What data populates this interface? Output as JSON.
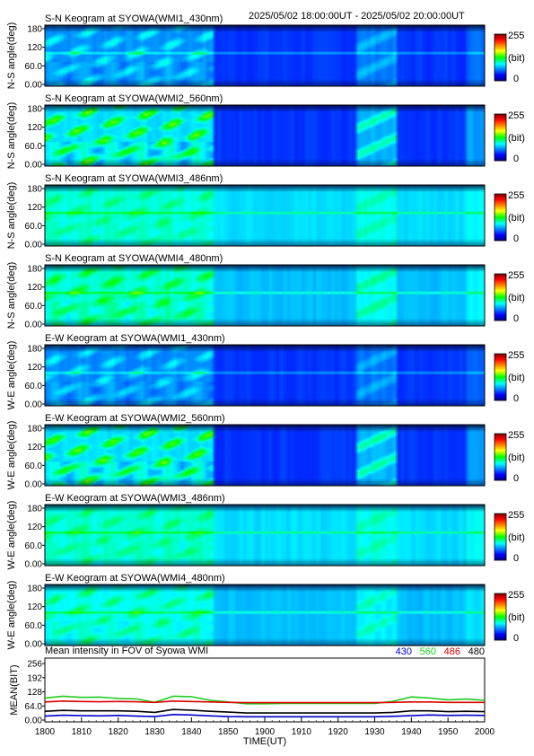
{
  "header": {
    "time_range": "2025/05/02 18:00:00UT - 2025/05/02 20:00:00UT"
  },
  "panels": [
    {
      "title": "S-N Keogram at SYOWA(WMI1_430nm)",
      "ylabel": "N-S angle(deg)",
      "channel": "430",
      "direction": "N-S",
      "activity": 0.55
    },
    {
      "title": "S-N Keogram at SYOWA(WMI2_560nm)",
      "ylabel": "N-S angle(deg)",
      "channel": "560",
      "direction": "N-S",
      "activity": 1.0
    },
    {
      "title": "S-N Keogram at SYOWA(WMI3_486nm)",
      "ylabel": "N-S angle(deg)",
      "channel": "486",
      "direction": "N-S",
      "activity": 0.3
    },
    {
      "title": "S-N Keogram at SYOWA(WMI4_480nm)",
      "ylabel": "N-S angle(deg)",
      "channel": "480",
      "direction": "N-S",
      "activity": 0.5
    },
    {
      "title": "E-W Keogram at SYOWA(WMI1_430nm)",
      "ylabel": "W-E angle(deg)",
      "channel": "430",
      "direction": "W-E",
      "activity": 0.5
    },
    {
      "title": "E-W Keogram at SYOWA(WMI2_560nm)",
      "ylabel": "W-E angle(deg)",
      "channel": "560",
      "direction": "W-E",
      "activity": 1.0
    },
    {
      "title": "E-W Keogram at SYOWA(WMI3_486nm)",
      "ylabel": "W-E angle(deg)",
      "channel": "486",
      "direction": "W-E",
      "activity": 0.3
    },
    {
      "title": "E-W Keogram at SYOWA(WMI4_480nm)",
      "ylabel": "W-E angle(deg)",
      "channel": "480",
      "direction": "W-E",
      "activity": 0.4
    }
  ],
  "keogram_axis": {
    "y_ticks": [
      "180",
      "120",
      "60.0",
      "0.00"
    ],
    "ylim": [
      0,
      180
    ]
  },
  "colorbar": {
    "max_label": "255",
    "unit_label": "(bit)",
    "min_label": "0",
    "range": [
      0,
      255
    ]
  },
  "chart_data": {
    "type": "line",
    "title": "Mean intensity in FOV of Syowa WMI",
    "xlabel": "TIME(UT)",
    "ylabel": "MEAN(BIT)",
    "x_ticks": [
      "1800",
      "1810",
      "1820",
      "1830",
      "1840",
      "1850",
      "1900",
      "1910",
      "1920",
      "1930",
      "1940",
      "1950",
      "2000"
    ],
    "y_ticks": [
      "256",
      "192",
      "128",
      "64.0",
      "0.00"
    ],
    "ylim": [
      0,
      256
    ],
    "x": [
      0,
      5,
      10,
      15,
      20,
      25,
      30,
      35,
      40,
      45,
      50,
      55,
      60,
      65,
      70,
      75,
      80,
      85,
      90,
      95,
      100,
      105,
      110,
      115,
      120
    ],
    "series": [
      {
        "name": "430",
        "color": "#0000cc",
        "values": [
          18,
          22,
          20,
          19,
          21,
          18,
          16,
          25,
          23,
          19,
          16,
          15,
          15,
          15,
          15,
          15,
          15,
          15,
          15,
          17,
          20,
          23,
          21,
          22,
          21
        ]
      },
      {
        "name": "560",
        "color": "#22cc22",
        "values": [
          100,
          108,
          103,
          104,
          98,
          96,
          80,
          108,
          106,
          90,
          82,
          74,
          74,
          75,
          75,
          75,
          75,
          75,
          75,
          85,
          105,
          100,
          92,
          95,
          90
        ]
      },
      {
        "name": "486",
        "color": "#dd0000",
        "values": [
          82,
          86,
          84,
          83,
          84,
          83,
          80,
          86,
          84,
          82,
          80,
          79,
          79,
          79,
          79,
          79,
          79,
          79,
          79,
          80,
          82,
          82,
          80,
          80,
          80
        ]
      },
      {
        "name": "480",
        "color": "#000000",
        "values": [
          40,
          44,
          42,
          42,
          42,
          40,
          35,
          48,
          45,
          40,
          36,
          32,
          32,
          32,
          32,
          32,
          32,
          32,
          32,
          35,
          42,
          42,
          38,
          40,
          38
        ]
      }
    ]
  }
}
